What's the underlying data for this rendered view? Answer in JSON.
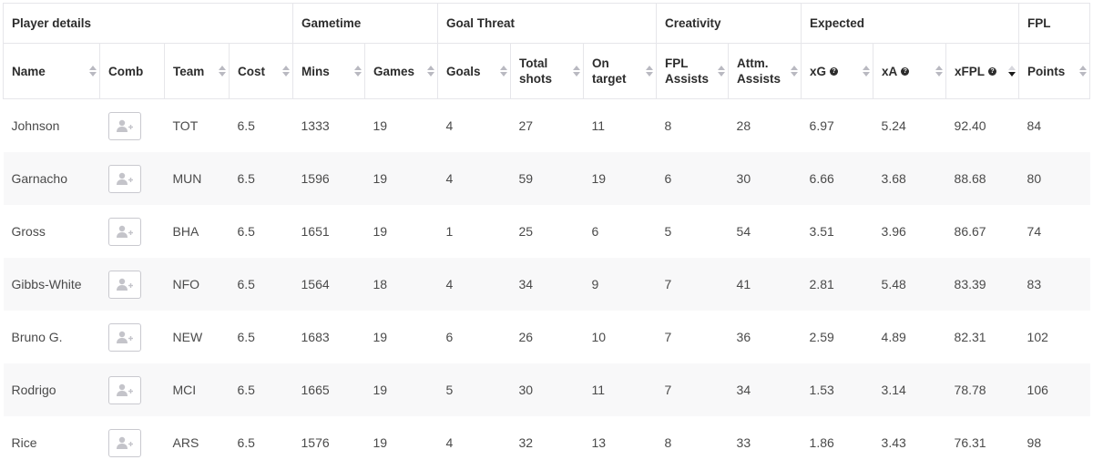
{
  "groups": [
    {
      "label": "Player details",
      "span": 4
    },
    {
      "label": "Gametime",
      "span": 2
    },
    {
      "label": "Goal Threat",
      "span": 3
    },
    {
      "label": "Creativity",
      "span": 2
    },
    {
      "label": "Expected",
      "span": 3
    },
    {
      "label": "FPL",
      "span": 1
    }
  ],
  "columns": [
    {
      "key": "name",
      "label": "Name",
      "sortable": true,
      "help": false,
      "sort_active": false
    },
    {
      "key": "comb",
      "label": "Comb",
      "sortable": false,
      "help": false,
      "sort_active": false
    },
    {
      "key": "team",
      "label": "Team",
      "sortable": true,
      "help": false,
      "sort_active": false
    },
    {
      "key": "cost",
      "label": "Cost",
      "sortable": true,
      "help": false,
      "sort_active": false
    },
    {
      "key": "mins",
      "label": "Mins",
      "sortable": true,
      "help": false,
      "sort_active": false
    },
    {
      "key": "games",
      "label": "Games",
      "sortable": true,
      "help": false,
      "sort_active": false
    },
    {
      "key": "goals",
      "label": "Goals",
      "sortable": true,
      "help": false,
      "sort_active": false
    },
    {
      "key": "total_shots",
      "label": "Total shots",
      "sortable": true,
      "help": false,
      "sort_active": false
    },
    {
      "key": "on_target",
      "label": "On target",
      "sortable": true,
      "help": false,
      "sort_active": false
    },
    {
      "key": "fpl_assists",
      "label": "FPL Assists",
      "sortable": true,
      "help": false,
      "sort_active": false
    },
    {
      "key": "attm_assists",
      "label": "Attm. Assists",
      "sortable": true,
      "help": false,
      "sort_active": false
    },
    {
      "key": "xg",
      "label": "xG",
      "sortable": true,
      "help": true,
      "sort_active": false
    },
    {
      "key": "xa",
      "label": "xA",
      "sortable": true,
      "help": true,
      "sort_active": false
    },
    {
      "key": "xfpl",
      "label": "xFPL",
      "sortable": true,
      "help": true,
      "sort_active": true
    },
    {
      "key": "points",
      "label": "Points",
      "sortable": true,
      "help": false,
      "sort_active": false
    }
  ],
  "rows": [
    {
      "name": "Johnson",
      "team": "TOT",
      "cost": "6.5",
      "mins": "1333",
      "games": "19",
      "goals": "4",
      "total_shots": "27",
      "on_target": "11",
      "fpl_assists": "8",
      "attm_assists": "28",
      "xg": "6.97",
      "xa": "5.24",
      "xfpl": "92.40",
      "points": "84"
    },
    {
      "name": "Garnacho",
      "team": "MUN",
      "cost": "6.5",
      "mins": "1596",
      "games": "19",
      "goals": "4",
      "total_shots": "59",
      "on_target": "19",
      "fpl_assists": "6",
      "attm_assists": "30",
      "xg": "6.66",
      "xa": "3.68",
      "xfpl": "88.68",
      "points": "80"
    },
    {
      "name": "Gross",
      "team": "BHA",
      "cost": "6.5",
      "mins": "1651",
      "games": "19",
      "goals": "1",
      "total_shots": "25",
      "on_target": "6",
      "fpl_assists": "5",
      "attm_assists": "54",
      "xg": "3.51",
      "xa": "3.96",
      "xfpl": "86.67",
      "points": "74"
    },
    {
      "name": "Gibbs-White",
      "team": "NFO",
      "cost": "6.5",
      "mins": "1564",
      "games": "18",
      "goals": "4",
      "total_shots": "34",
      "on_target": "9",
      "fpl_assists": "7",
      "attm_assists": "41",
      "xg": "2.81",
      "xa": "5.48",
      "xfpl": "83.39",
      "points": "83"
    },
    {
      "name": "Bruno G.",
      "team": "NEW",
      "cost": "6.5",
      "mins": "1683",
      "games": "19",
      "goals": "6",
      "total_shots": "26",
      "on_target": "10",
      "fpl_assists": "7",
      "attm_assists": "36",
      "xg": "2.59",
      "xa": "4.89",
      "xfpl": "82.31",
      "points": "102"
    },
    {
      "name": "Rodrigo",
      "team": "MCI",
      "cost": "6.5",
      "mins": "1665",
      "games": "19",
      "goals": "5",
      "total_shots": "30",
      "on_target": "11",
      "fpl_assists": "7",
      "attm_assists": "34",
      "xg": "1.53",
      "xa": "3.14",
      "xfpl": "78.78",
      "points": "106"
    },
    {
      "name": "Rice",
      "team": "ARS",
      "cost": "6.5",
      "mins": "1576",
      "games": "19",
      "goals": "4",
      "total_shots": "32",
      "on_target": "13",
      "fpl_assists": "8",
      "attm_assists": "33",
      "xg": "1.86",
      "xa": "3.43",
      "xfpl": "76.31",
      "points": "98"
    }
  ],
  "icons": {
    "comb_button": "add-user-icon",
    "help": "question-circle-icon",
    "sort": "sort-arrows-icon"
  },
  "colors": {
    "header_text": "#2c2c2c",
    "cell_text": "#4a4a4a",
    "stripe": "#f8f8f9",
    "border": "#e6e6ea"
  }
}
